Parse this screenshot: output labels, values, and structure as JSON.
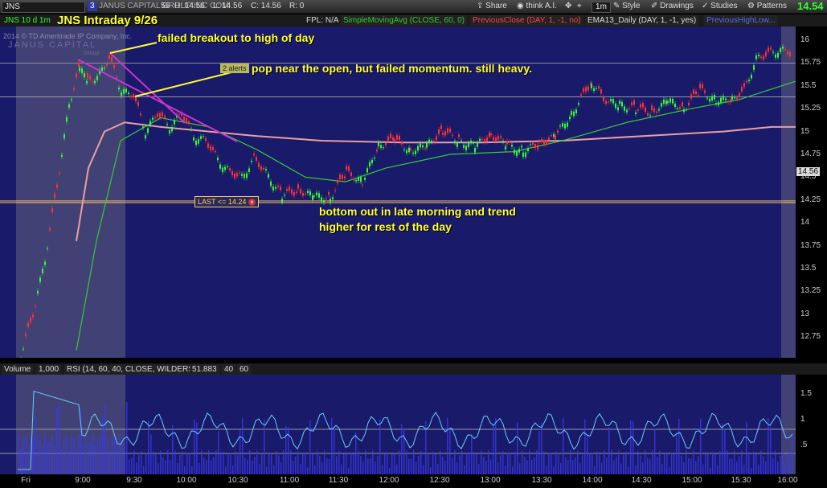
{
  "toolbar": {
    "symbol": "JNS",
    "link_badge": "3",
    "company": "JANUS CAPITAL GROUP INC COM",
    "quote_fragment": "56",
    "high": "H: 14.56",
    "low": "L: 14.56",
    "close": "C: 14.56",
    "range": "R: 0",
    "share": "Share",
    "think": "think A.I.",
    "timeframe": "1m",
    "style": "Style",
    "drawings": "Drawings",
    "studies": "Studies",
    "patterns": "Patterns",
    "last_price": "14.54"
  },
  "studies": {
    "symbol_period": "JNS 10 d 1m",
    "fpl": "FPL: N/A",
    "sma": "SimpleMovingAvg (CLOSE, 60, 0)",
    "prev_close": "PreviousClose (DAY, 1, -1, no)",
    "ema": "EMA13_Daily (DAY, 1, -1, yes)",
    "prev_high_low": "PreviousHighLow..."
  },
  "watermark": {
    "copyright": "2014 © TD Ameritrade IP Company, Inc.",
    "brand": "JANUS CAPITAL",
    "brand_sub": "Group"
  },
  "annotations": {
    "title": "JNS Intraday 9/26",
    "a1": "failed breakout to high of day",
    "a2": "pop near the open, but failed momentum. still heavy.",
    "a3_line1": "bottom out in late morning and trend",
    "a3_line2": "higher for rest of the day",
    "alert_tag": "2 alerts",
    "last_alert": "LAST <= 14.24",
    "price_tag": "14.56"
  },
  "lower_panel": {
    "volume": "Volume",
    "volume_scale": "1,000",
    "rsi": "RSI (14, 60, 40, CLOSE, WILDERS)",
    "rsi_value": "51.883",
    "level1": "40",
    "level2": "60"
  },
  "colors": {
    "chart_bg": "#1a1a6a",
    "up_candle": "#33ff33",
    "down_candle": "#ff3333",
    "sma_line": "#33cc33",
    "ema_line": "#e8a0a0",
    "annotation": "#ffff33",
    "trendline": "#cc33cc",
    "rsi_line": "#66ccff"
  },
  "chart_data": {
    "type": "line",
    "price_axis": [
      "16",
      "15.75",
      "15.5",
      "15.25",
      "15",
      "14.75",
      "14.5",
      "14.25",
      "14",
      "13.75",
      "13.5",
      "13.25",
      "13",
      "12.75"
    ],
    "time_axis": [
      "Fri",
      "9:00",
      "9:30",
      "10:00",
      "10:30",
      "11:00",
      "11:30",
      "12:00",
      "12:30",
      "13:00",
      "13:30",
      "14:00",
      "14:30",
      "15:00",
      "15:30",
      "16:00"
    ],
    "lower_axis": [
      "1.5",
      "1",
      ".5"
    ],
    "ylim": [
      12.6,
      16.1
    ]
  }
}
